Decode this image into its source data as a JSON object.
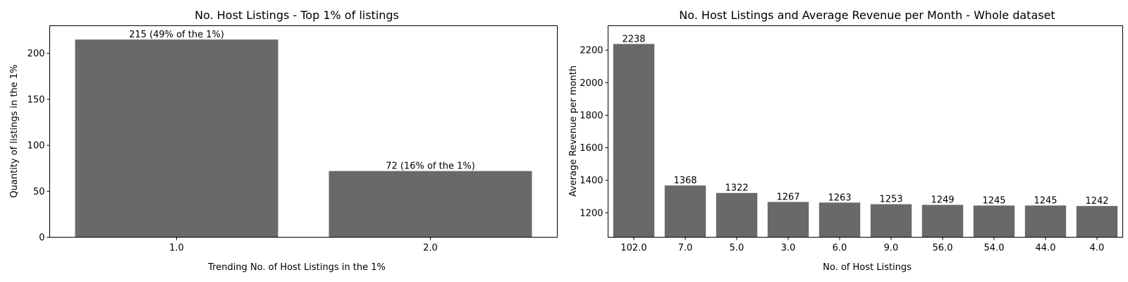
{
  "chart_data": [
    {
      "type": "bar",
      "title": "No. Host Listings - Top 1% of listings",
      "xlabel": "Trending No. of Host Listings in the 1%",
      "ylabel": "Quantity of listings in the 1%",
      "categories": [
        "1.0",
        "2.0"
      ],
      "values": [
        215,
        72
      ],
      "data_labels": [
        "215 (49% of the 1%)",
        "72 (16% of the 1%)"
      ],
      "ylim": [
        0,
        230
      ],
      "yticks": [
        0,
        50,
        100,
        150,
        200
      ],
      "grid": false,
      "bar_color": "#696969"
    },
    {
      "type": "bar",
      "title": "No. Host Listings and Average Revenue per Month - Whole dataset",
      "xlabel": "No. of Host Listings",
      "ylabel": "Average Revenue per month",
      "categories": [
        "102.0",
        "7.0",
        "5.0",
        "3.0",
        "6.0",
        "9.0",
        "56.0",
        "54.0",
        "44.0",
        "4.0"
      ],
      "values": [
        2238,
        1368,
        1322,
        1267,
        1263,
        1253,
        1249,
        1245,
        1245,
        1242
      ],
      "data_labels": [
        "2238",
        "1368",
        "1322",
        "1267",
        "1263",
        "1253",
        "1249",
        "1245",
        "1245",
        "1242"
      ],
      "ylim": [
        1050,
        2350
      ],
      "yticks": [
        1200,
        1400,
        1600,
        1800,
        2000,
        2200
      ],
      "grid": false,
      "bar_color": "#696969"
    }
  ]
}
